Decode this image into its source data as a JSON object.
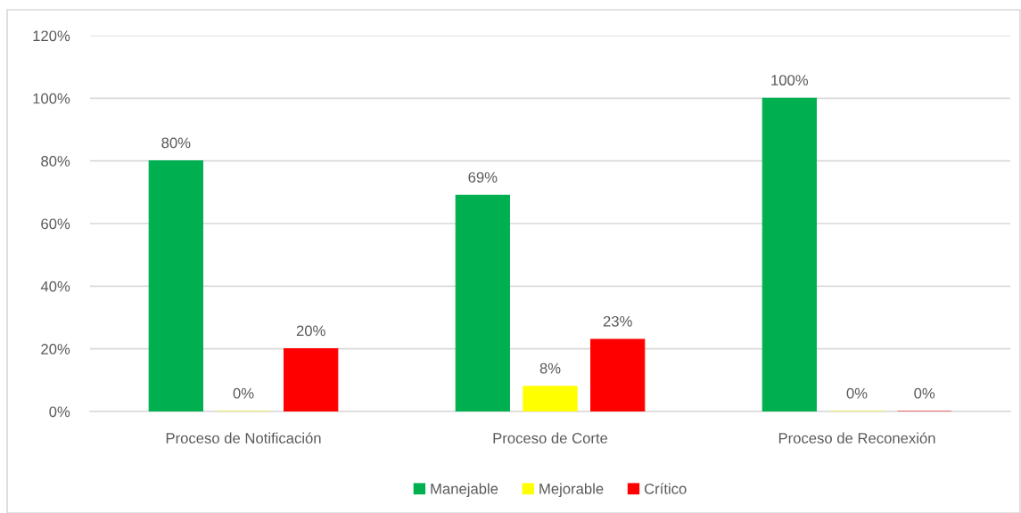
{
  "chart_data": {
    "type": "bar",
    "categories": [
      "Proceso de Notificación",
      "Proceso de Corte",
      "Proceso de Reconexión"
    ],
    "series": [
      {
        "name": "Manejable",
        "color": "#00b050",
        "values": [
          80,
          69,
          100
        ],
        "value_labels": [
          "80%",
          "69%",
          "100%"
        ]
      },
      {
        "name": "Mejorable",
        "color": "#ffff00",
        "values": [
          0,
          8,
          0
        ],
        "value_labels": [
          "0%",
          "8%",
          "0%"
        ]
      },
      {
        "name": "Crítico",
        "color": "#ff0000",
        "values": [
          20,
          23,
          0
        ],
        "value_labels": [
          "20%",
          "23%",
          "0%"
        ]
      }
    ],
    "ylim": [
      0,
      120
    ],
    "yticks": [
      {
        "value": 0,
        "label": "0%"
      },
      {
        "value": 20,
        "label": "20%"
      },
      {
        "value": 40,
        "label": "40%"
      },
      {
        "value": 60,
        "label": "60%"
      },
      {
        "value": 80,
        "label": "80%"
      },
      {
        "value": 100,
        "label": "100%"
      },
      {
        "value": 120,
        "label": "120%"
      }
    ],
    "grid": "y",
    "legend": "bottom"
  }
}
